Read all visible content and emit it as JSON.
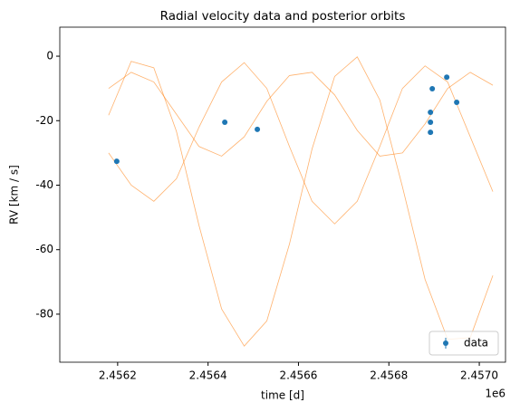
{
  "chart_data": {
    "type": "scatter",
    "title": "Radial velocity data and posterior orbits",
    "x_label": "time [d]",
    "y_label": "RV [km / s]",
    "x_offset_label": "1e6",
    "xlim": [
      2456072,
      2457058
    ],
    "ylim": [
      -94.9,
      9
    ],
    "xticks": [
      {
        "value": 2456200,
        "label": "2.4562"
      },
      {
        "value": 2456400,
        "label": "2.4564"
      },
      {
        "value": 2456600,
        "label": "2.4566"
      },
      {
        "value": 2456800,
        "label": "2.4568"
      },
      {
        "value": 2457000,
        "label": "2.4570"
      }
    ],
    "yticks": [
      0,
      -20,
      -40,
      -60,
      -80
    ],
    "legend_position": "lower right",
    "series": [
      {
        "name": "data",
        "color": "#1f77b4",
        "x": [
          2456198,
          2456437,
          2456509,
          2456892,
          2456892,
          2456892,
          2456896,
          2456928,
          2456950
        ],
        "values": [
          -32.6,
          -20.5,
          -22.7,
          -23.6,
          -20.5,
          -17.4,
          -10.1,
          -6.5,
          -14.3
        ]
      }
    ],
    "orbit_color": "#ff7f0e",
    "orbit_x": [
      2456180,
      2456230,
      2456280,
      2456330,
      2456380,
      2456430,
      2456480,
      2456530,
      2456580,
      2456630,
      2456680,
      2456730,
      2456780,
      2456830,
      2456880,
      2456930,
      2456980,
      2457030
    ],
    "orbits": [
      {
        "values": [
          -18.3,
          -1.6,
          -3.6,
          -23.3,
          -52.5,
          -78.4,
          -89.9,
          -82.1,
          -58.3,
          -28.8,
          -6.3,
          -0.2,
          -13.6,
          -40.5,
          -69.2,
          -87.8,
          -87.3,
          -68.0
        ]
      },
      {
        "values": [
          -10,
          -5,
          -8,
          -18,
          -28,
          -31,
          -25,
          -14,
          -6,
          -5,
          -12,
          -23,
          -31,
          -30,
          -21,
          -10,
          -5,
          -9
        ]
      },
      {
        "values": [
          -30,
          -40,
          -45,
          -38,
          -22,
          -8,
          -2,
          -10,
          -28,
          -45,
          -52,
          -45,
          -28,
          -10,
          -3,
          -8,
          -25,
          -42
        ]
      }
    ]
  }
}
